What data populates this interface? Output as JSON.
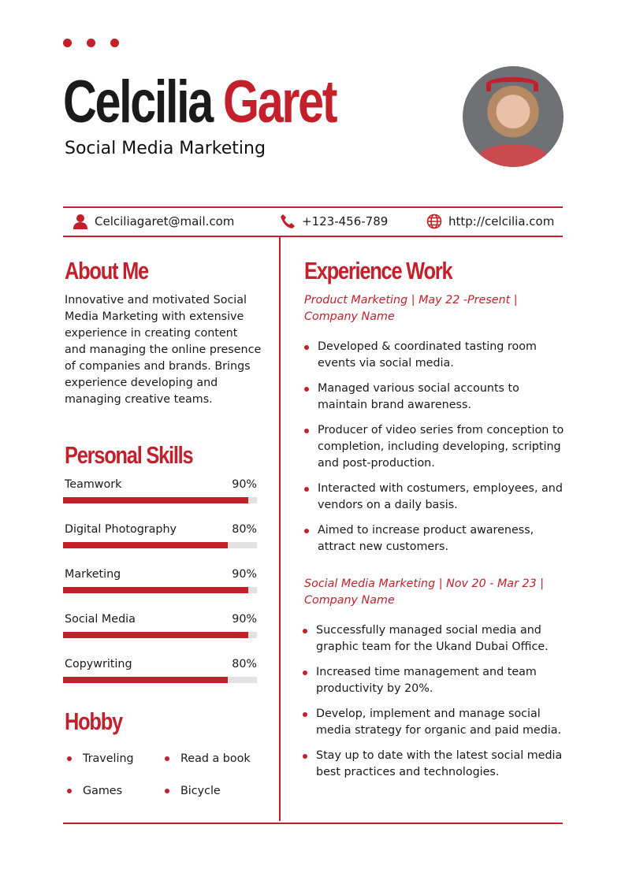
{
  "header": {
    "first_name": "Celcilia",
    "last_name": "Garet",
    "title": "Social Media Marketing"
  },
  "contact": {
    "email": "Celciliagaret@mail.com",
    "phone": "+123-456-789",
    "website": "http://celcilia.com"
  },
  "about": {
    "heading": "About Me",
    "text": "Innovative and motivated Social Media Marketing with extensive experience in creating content and managing the online presence of companies and brands. Brings experience developing and managing creative teams."
  },
  "skills": {
    "heading": "Personal Skills",
    "items": [
      {
        "name": "Teamwork",
        "label": "90%",
        "value": 90
      },
      {
        "name": "Digital Photography",
        "label": "80%",
        "value": 80
      },
      {
        "name": "Marketing",
        "label": "90%",
        "value": 90
      },
      {
        "name": "Social Media",
        "label": "90%",
        "value": 90
      },
      {
        "name": "Copywriting",
        "label": "80%",
        "value": 80
      }
    ]
  },
  "hobby": {
    "heading": "Hobby",
    "items": [
      "Traveling",
      "Read a book",
      "Games",
      "Bicycle"
    ]
  },
  "experience": {
    "heading": "Experience Work",
    "jobs": [
      {
        "title": "Product Marketing | May 22 -Present | Company Name",
        "bullets": [
          "Developed & coordinated tasting room events via social media.",
          "Managed various social accounts to maintain brand awareness.",
          "Producer of video series from conception to completion, including developing, scripting and post-production.",
          "Interacted with costumers, employees, and vendors on a daily basis.",
          "Aimed to increase product awareness, attract new customers."
        ]
      },
      {
        "title": "Social Media Marketing | Nov 20 - Mar 23 | Company Name",
        "bullets": [
          "Successfully managed social media and graphic team for the Ukand Dubai Office.",
          "Increased time management and team productivity by 20%.",
          "Develop, implement and manage social media strategy for organic and paid media.",
          "Stay up to date with the latest social media best practices and technologies."
        ]
      }
    ]
  },
  "colors": {
    "accent": "#c3202b"
  }
}
